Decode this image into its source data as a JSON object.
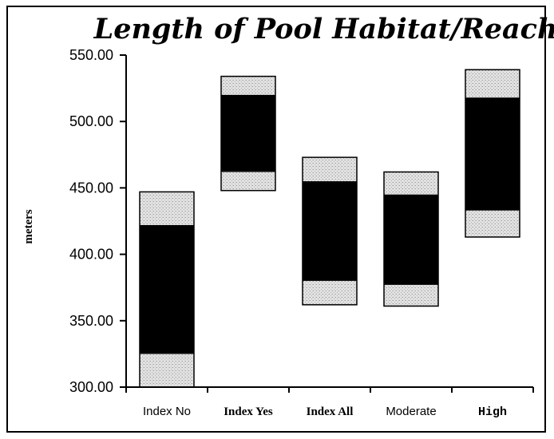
{
  "chart_data": {
    "type": "bar",
    "title": "Length of Pool Habitat/Reach",
    "ylabel": "meters",
    "xlabel": "",
    "ylim": [
      300,
      550
    ],
    "yticks": [
      "300.00",
      "350.00",
      "400.00",
      "450.00",
      "500.00",
      "550.00"
    ],
    "categories": [
      "Index No",
      "Index Yes",
      "Index All",
      "Moderate",
      "High"
    ],
    "boxes": [
      {
        "category": "Index No",
        "outer_low": 300,
        "inner_low": 325,
        "inner_high": 422,
        "outer_high": 447
      },
      {
        "category": "Index Yes",
        "outer_low": 448,
        "inner_low": 462,
        "inner_high": 520,
        "outer_high": 534
      },
      {
        "category": "Index All",
        "outer_low": 362,
        "inner_low": 380,
        "inner_high": 455,
        "outer_high": 473
      },
      {
        "category": "Moderate",
        "outer_low": 361,
        "inner_low": 377,
        "inner_high": 445,
        "outer_high": 462
      },
      {
        "category": "High",
        "outer_low": 413,
        "inner_low": 433,
        "inner_high": 518,
        "outer_high": 539
      }
    ],
    "colors": {
      "inner": "#000000",
      "outer": "#d8d8d8",
      "axis": "#000000"
    },
    "grid": false,
    "legend": "none"
  }
}
